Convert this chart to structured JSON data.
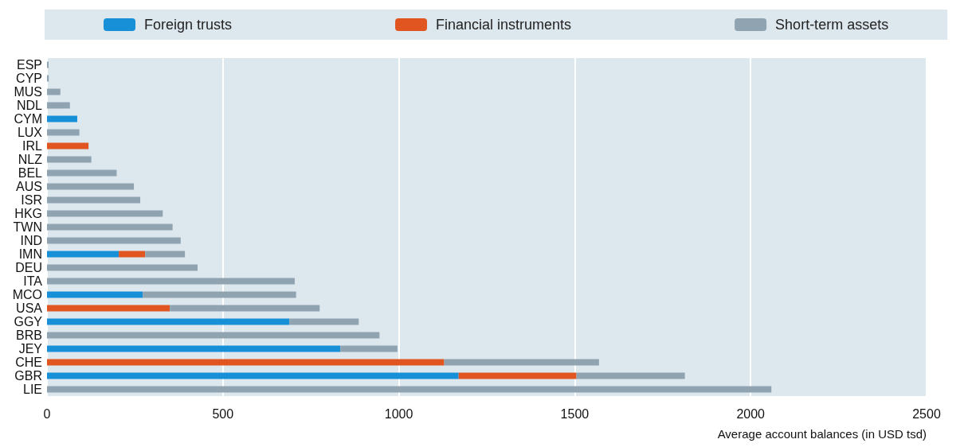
{
  "chart_data": {
    "type": "bar",
    "orientation": "horizontal",
    "stacked": true,
    "xlabel": "Average account balances (in USD tsd)",
    "categories": [
      "ESP",
      "CYP",
      "MUS",
      "NDL",
      "CYM",
      "LUX",
      "IRL",
      "NLZ",
      "BEL",
      "AUS",
      "ISR",
      "HKG",
      "TWN",
      "IND",
      "IMN",
      "DEU",
      "ITA",
      "MCO",
      "USA",
      "GGY",
      "BRB",
      "JEY",
      "CHE",
      "GBR",
      "LIE"
    ],
    "series": [
      {
        "name": "Foreign trusts",
        "color": "#1890d8",
        "values": [
          null,
          null,
          null,
          null,
          86,
          null,
          null,
          null,
          null,
          null,
          null,
          null,
          null,
          null,
          204,
          null,
          null,
          272,
          null,
          689,
          null,
          834,
          null,
          1170,
          null
        ]
      },
      {
        "name": "Financial instruments",
        "color": "#e05520",
        "values": [
          null,
          null,
          null,
          null,
          null,
          null,
          118,
          null,
          null,
          null,
          null,
          null,
          null,
          null,
          75,
          null,
          null,
          null,
          349,
          null,
          null,
          null,
          1129,
          335,
          null
        ]
      },
      {
        "name": "Short-term assets",
        "color": "#8fa3b0",
        "values": [
          3,
          5,
          38,
          65,
          null,
          92,
          null,
          126,
          198,
          247,
          265,
          329,
          357,
          380,
          113,
          428,
          704,
          436,
          426,
          197,
          945,
          162,
          440,
          308,
          2059
        ]
      }
    ],
    "xlim": [
      0,
      2500
    ],
    "xticks": [
      0,
      500,
      1000,
      1500,
      2000,
      2500
    ],
    "grid": "x",
    "legend": "top"
  }
}
